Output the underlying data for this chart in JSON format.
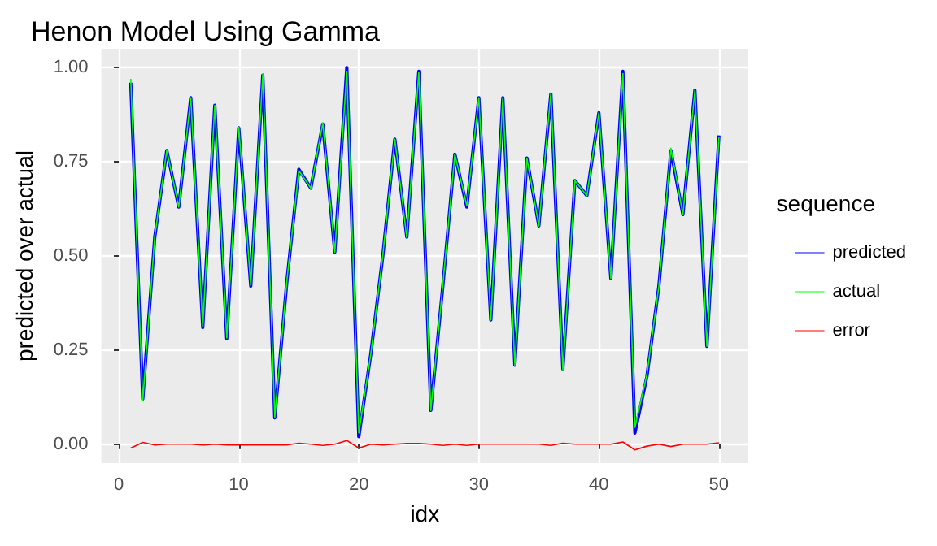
{
  "chart_data": {
    "type": "line",
    "title": "Henon Model Using Gamma",
    "xlabel": "idx",
    "ylabel": "predicted over actual",
    "legend_title": "sequence",
    "x": [
      1,
      2,
      3,
      4,
      5,
      6,
      7,
      8,
      9,
      10,
      11,
      12,
      13,
      14,
      15,
      16,
      17,
      18,
      19,
      20,
      21,
      22,
      23,
      24,
      25,
      26,
      27,
      28,
      29,
      30,
      31,
      32,
      33,
      34,
      35,
      36,
      37,
      38,
      39,
      40,
      41,
      42,
      43,
      44,
      45,
      46,
      47,
      48,
      49,
      50
    ],
    "series": [
      {
        "name": "predicted",
        "color": "#0000ff",
        "values": [
          0.96,
          0.12,
          0.55,
          0.78,
          0.63,
          0.92,
          0.31,
          0.9,
          0.28,
          0.84,
          0.42,
          0.98,
          0.07,
          0.43,
          0.73,
          0.68,
          0.85,
          0.51,
          1.0,
          0.02,
          0.24,
          0.5,
          0.81,
          0.55,
          0.99,
          0.09,
          0.42,
          0.77,
          0.63,
          0.92,
          0.33,
          0.92,
          0.21,
          0.76,
          0.58,
          0.93,
          0.2,
          0.7,
          0.66,
          0.88,
          0.44,
          0.99,
          0.03,
          0.18,
          0.42,
          0.78,
          0.61,
          0.94,
          0.26,
          0.82
        ]
      },
      {
        "name": "actual",
        "color": "#00ff00",
        "values": [
          0.97,
          0.115,
          0.552,
          0.78,
          0.63,
          0.92,
          0.312,
          0.9,
          0.282,
          0.842,
          0.422,
          0.982,
          0.072,
          0.432,
          0.727,
          0.68,
          0.853,
          0.51,
          0.99,
          0.03,
          0.24,
          0.502,
          0.81,
          0.548,
          0.988,
          0.09,
          0.423,
          0.77,
          0.633,
          0.92,
          0.33,
          0.92,
          0.21,
          0.76,
          0.58,
          0.933,
          0.197,
          0.7,
          0.66,
          0.88,
          0.44,
          0.984,
          0.045,
          0.185,
          0.42,
          0.786,
          0.61,
          0.94,
          0.26,
          0.816
        ]
      },
      {
        "name": "error",
        "color": "#ff0000",
        "values": [
          -0.01,
          0.005,
          -0.002,
          0,
          0,
          0,
          -0.002,
          0,
          -0.002,
          -0.002,
          -0.002,
          -0.002,
          -0.002,
          -0.002,
          0.003,
          0,
          -0.003,
          0,
          0.01,
          -0.01,
          0,
          -0.002,
          0,
          0.002,
          0.002,
          0,
          -0.003,
          0,
          -0.003,
          0,
          0,
          0,
          0,
          0,
          0,
          -0.003,
          0.003,
          0,
          0,
          0,
          0,
          0.006,
          -0.015,
          -0.005,
          0,
          -0.006,
          0,
          0,
          0,
          0.004
        ]
      }
    ],
    "xlim": [
      -1.45,
      52.45
    ],
    "xticks": [
      0,
      10,
      20,
      30,
      40,
      50
    ],
    "ylim": [
      -0.05,
      1.05
    ],
    "yticks": [
      {
        "value": 0,
        "label": "0.00"
      },
      {
        "value": 0.25,
        "label": "0.25"
      },
      {
        "value": 0.5,
        "label": "0.50"
      },
      {
        "value": 0.75,
        "label": "0.75"
      },
      {
        "value": 1,
        "label": "1.00"
      }
    ],
    "grid": true,
    "legend": "right",
    "marker": "none",
    "line_style": "solid"
  }
}
